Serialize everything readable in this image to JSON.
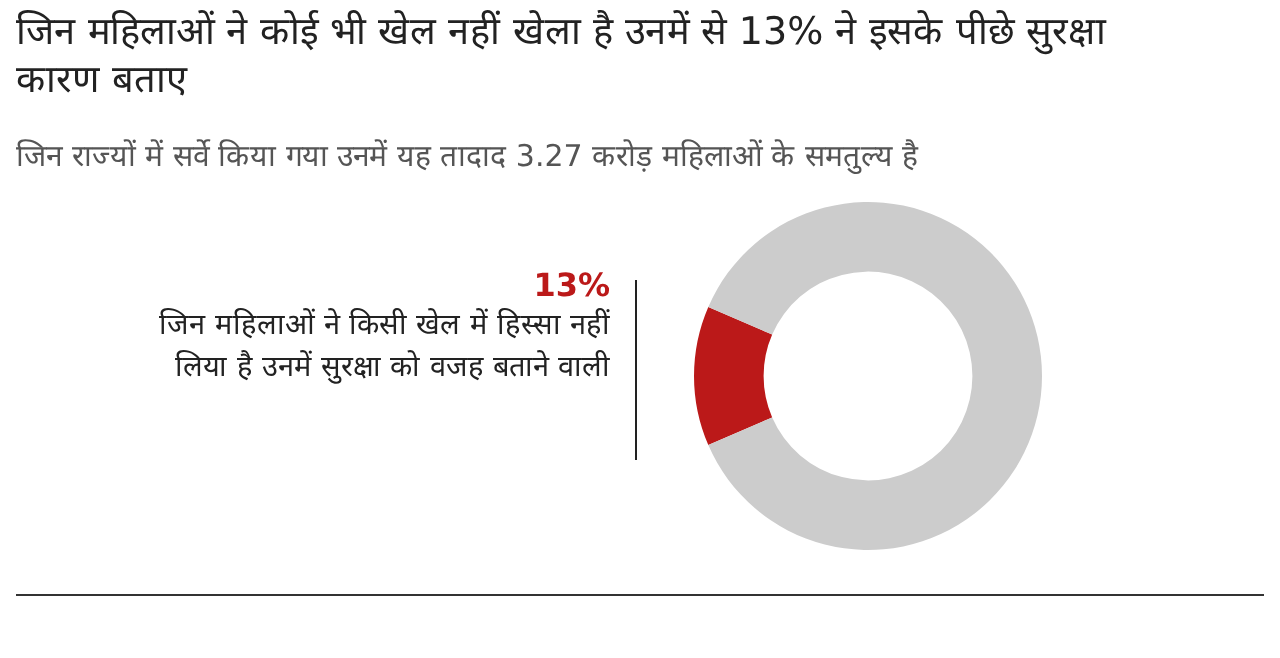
{
  "chart_data": {
    "type": "donut",
    "title": "जिन महिलाओं ने कोई भी खेल नहीं खेला है उनमें से 13% ने इसके पीछे सुरक्षा कारण बताए",
    "subtitle": "जिन राज्यों में सर्वे किया गया उनमें यह तादाद 3.27 करोड़ महिलाओं के समतुल्य है",
    "categories": [
      "जिन महिलाओं ने किसी खेल में हिस्सा नहीं लिया है उनमें सुरक्षा को वजह बताने वाली",
      null
    ],
    "values": [
      13,
      87
    ],
    "colors": [
      "#bb1919",
      "#cccccc"
    ],
    "value_labels": [
      "13%",
      null
    ]
  }
}
